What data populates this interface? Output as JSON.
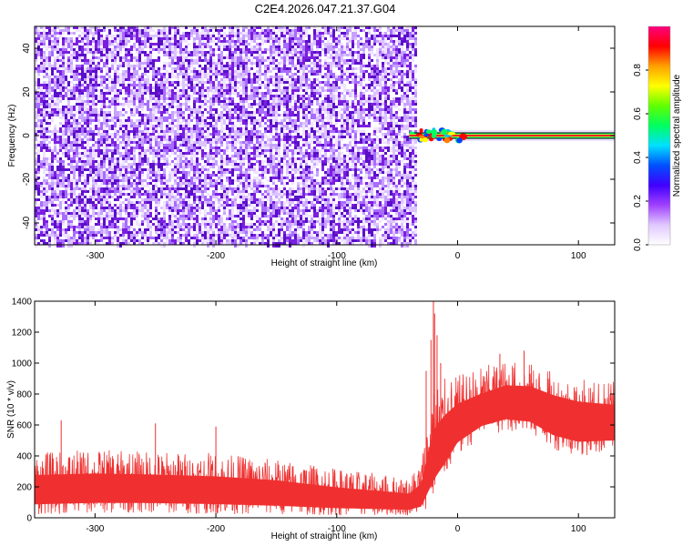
{
  "page": {
    "title": "C2E4.2026.047.21.37.G04",
    "background": "#ffffff"
  },
  "chart_data": [
    {
      "type": "heatmap",
      "id": "spectrogram",
      "title": "C2E4.2026.047.21.37.G04",
      "xlabel": "Height of straight line (km)",
      "ylabel": "Frequency (Hz)",
      "xlim": [
        -350,
        130
      ],
      "ylim": [
        -50,
        50
      ],
      "xticks": [
        -300,
        -200,
        -100,
        0,
        100
      ],
      "yticks": [
        -40,
        -20,
        0,
        20,
        40
      ],
      "grid": false,
      "noise_region_x": [
        -350,
        -35
      ],
      "noise_color": "#7a1fe0",
      "signal": {
        "x_start": -40,
        "x_end": 130,
        "frequency_hz": 0,
        "peak_amplitude": 1.0,
        "burst_x": [
          -40,
          5
        ]
      },
      "colorbar": {
        "label": "Normalized spectral amplitude",
        "range": [
          0,
          1
        ],
        "ticks": [
          0.0,
          0.2,
          0.4,
          0.6,
          0.8
        ],
        "tick_labels": [
          "0.0",
          "0.2",
          "0.4",
          "0.6",
          "0.8"
        ],
        "colors": [
          "#ffffff",
          "#e0c8ff",
          "#a040ff",
          "#4000ff",
          "#0050ff",
          "#00e0ff",
          "#00ff60",
          "#60ff00",
          "#ffff00",
          "#ffa000",
          "#ff0000",
          "#ff0080"
        ]
      }
    },
    {
      "type": "line",
      "id": "snr",
      "xlabel": "Height of straight line (km)",
      "ylabel": "SNR (10 * v/v)",
      "xlim": [
        -350,
        130
      ],
      "ylim": [
        0,
        1400
      ],
      "xticks": [
        -300,
        -200,
        -100,
        0,
        100
      ],
      "yticks": [
        0,
        200,
        400,
        600,
        800,
        1000,
        1200,
        1400
      ],
      "grid": false,
      "series": [
        {
          "color": "#f03030",
          "envelope": [
            {
              "x": -350,
              "low": 20,
              "mid": 210,
              "high": 420
            },
            {
              "x": -300,
              "low": 30,
              "mid": 220,
              "high": 440
            },
            {
              "x": -250,
              "low": 30,
              "mid": 215,
              "high": 430
            },
            {
              "x": -200,
              "low": 25,
              "mid": 205,
              "high": 420
            },
            {
              "x": -150,
              "low": 20,
              "mid": 185,
              "high": 380
            },
            {
              "x": -100,
              "low": 15,
              "mid": 150,
              "high": 320
            },
            {
              "x": -60,
              "low": 15,
              "mid": 130,
              "high": 280
            },
            {
              "x": -40,
              "low": 15,
              "mid": 120,
              "high": 260
            },
            {
              "x": -30,
              "low": 20,
              "mid": 170,
              "high": 380
            },
            {
              "x": -24,
              "low": 80,
              "mid": 350,
              "high": 700
            },
            {
              "x": -18,
              "low": 150,
              "mid": 480,
              "high": 900
            },
            {
              "x": -10,
              "low": 250,
              "mid": 560,
              "high": 900
            },
            {
              "x": 0,
              "low": 400,
              "mid": 650,
              "high": 920
            },
            {
              "x": 20,
              "low": 520,
              "mid": 730,
              "high": 980
            },
            {
              "x": 40,
              "low": 560,
              "mid": 780,
              "high": 1020
            },
            {
              "x": 60,
              "low": 540,
              "mid": 770,
              "high": 1000
            },
            {
              "x": 80,
              "low": 440,
              "mid": 700,
              "high": 940
            },
            {
              "x": 100,
              "low": 400,
              "mid": 660,
              "high": 900
            },
            {
              "x": 130,
              "low": 420,
              "mid": 650,
              "high": 880
            }
          ],
          "spikes": [
            {
              "x": -20,
              "y": 1400
            },
            {
              "x": -19,
              "y": 1320
            },
            {
              "x": -22,
              "y": 1150
            },
            {
              "x": -17,
              "y": 1180
            },
            {
              "x": -14,
              "y": 1000
            },
            {
              "x": -26,
              "y": 950
            },
            {
              "x": 55,
              "y": 1080
            },
            {
              "x": 35,
              "y": 1060
            },
            {
              "x": -328,
              "y": 630
            },
            {
              "x": -250,
              "y": 610
            },
            {
              "x": -200,
              "y": 590
            }
          ]
        }
      ]
    }
  ]
}
